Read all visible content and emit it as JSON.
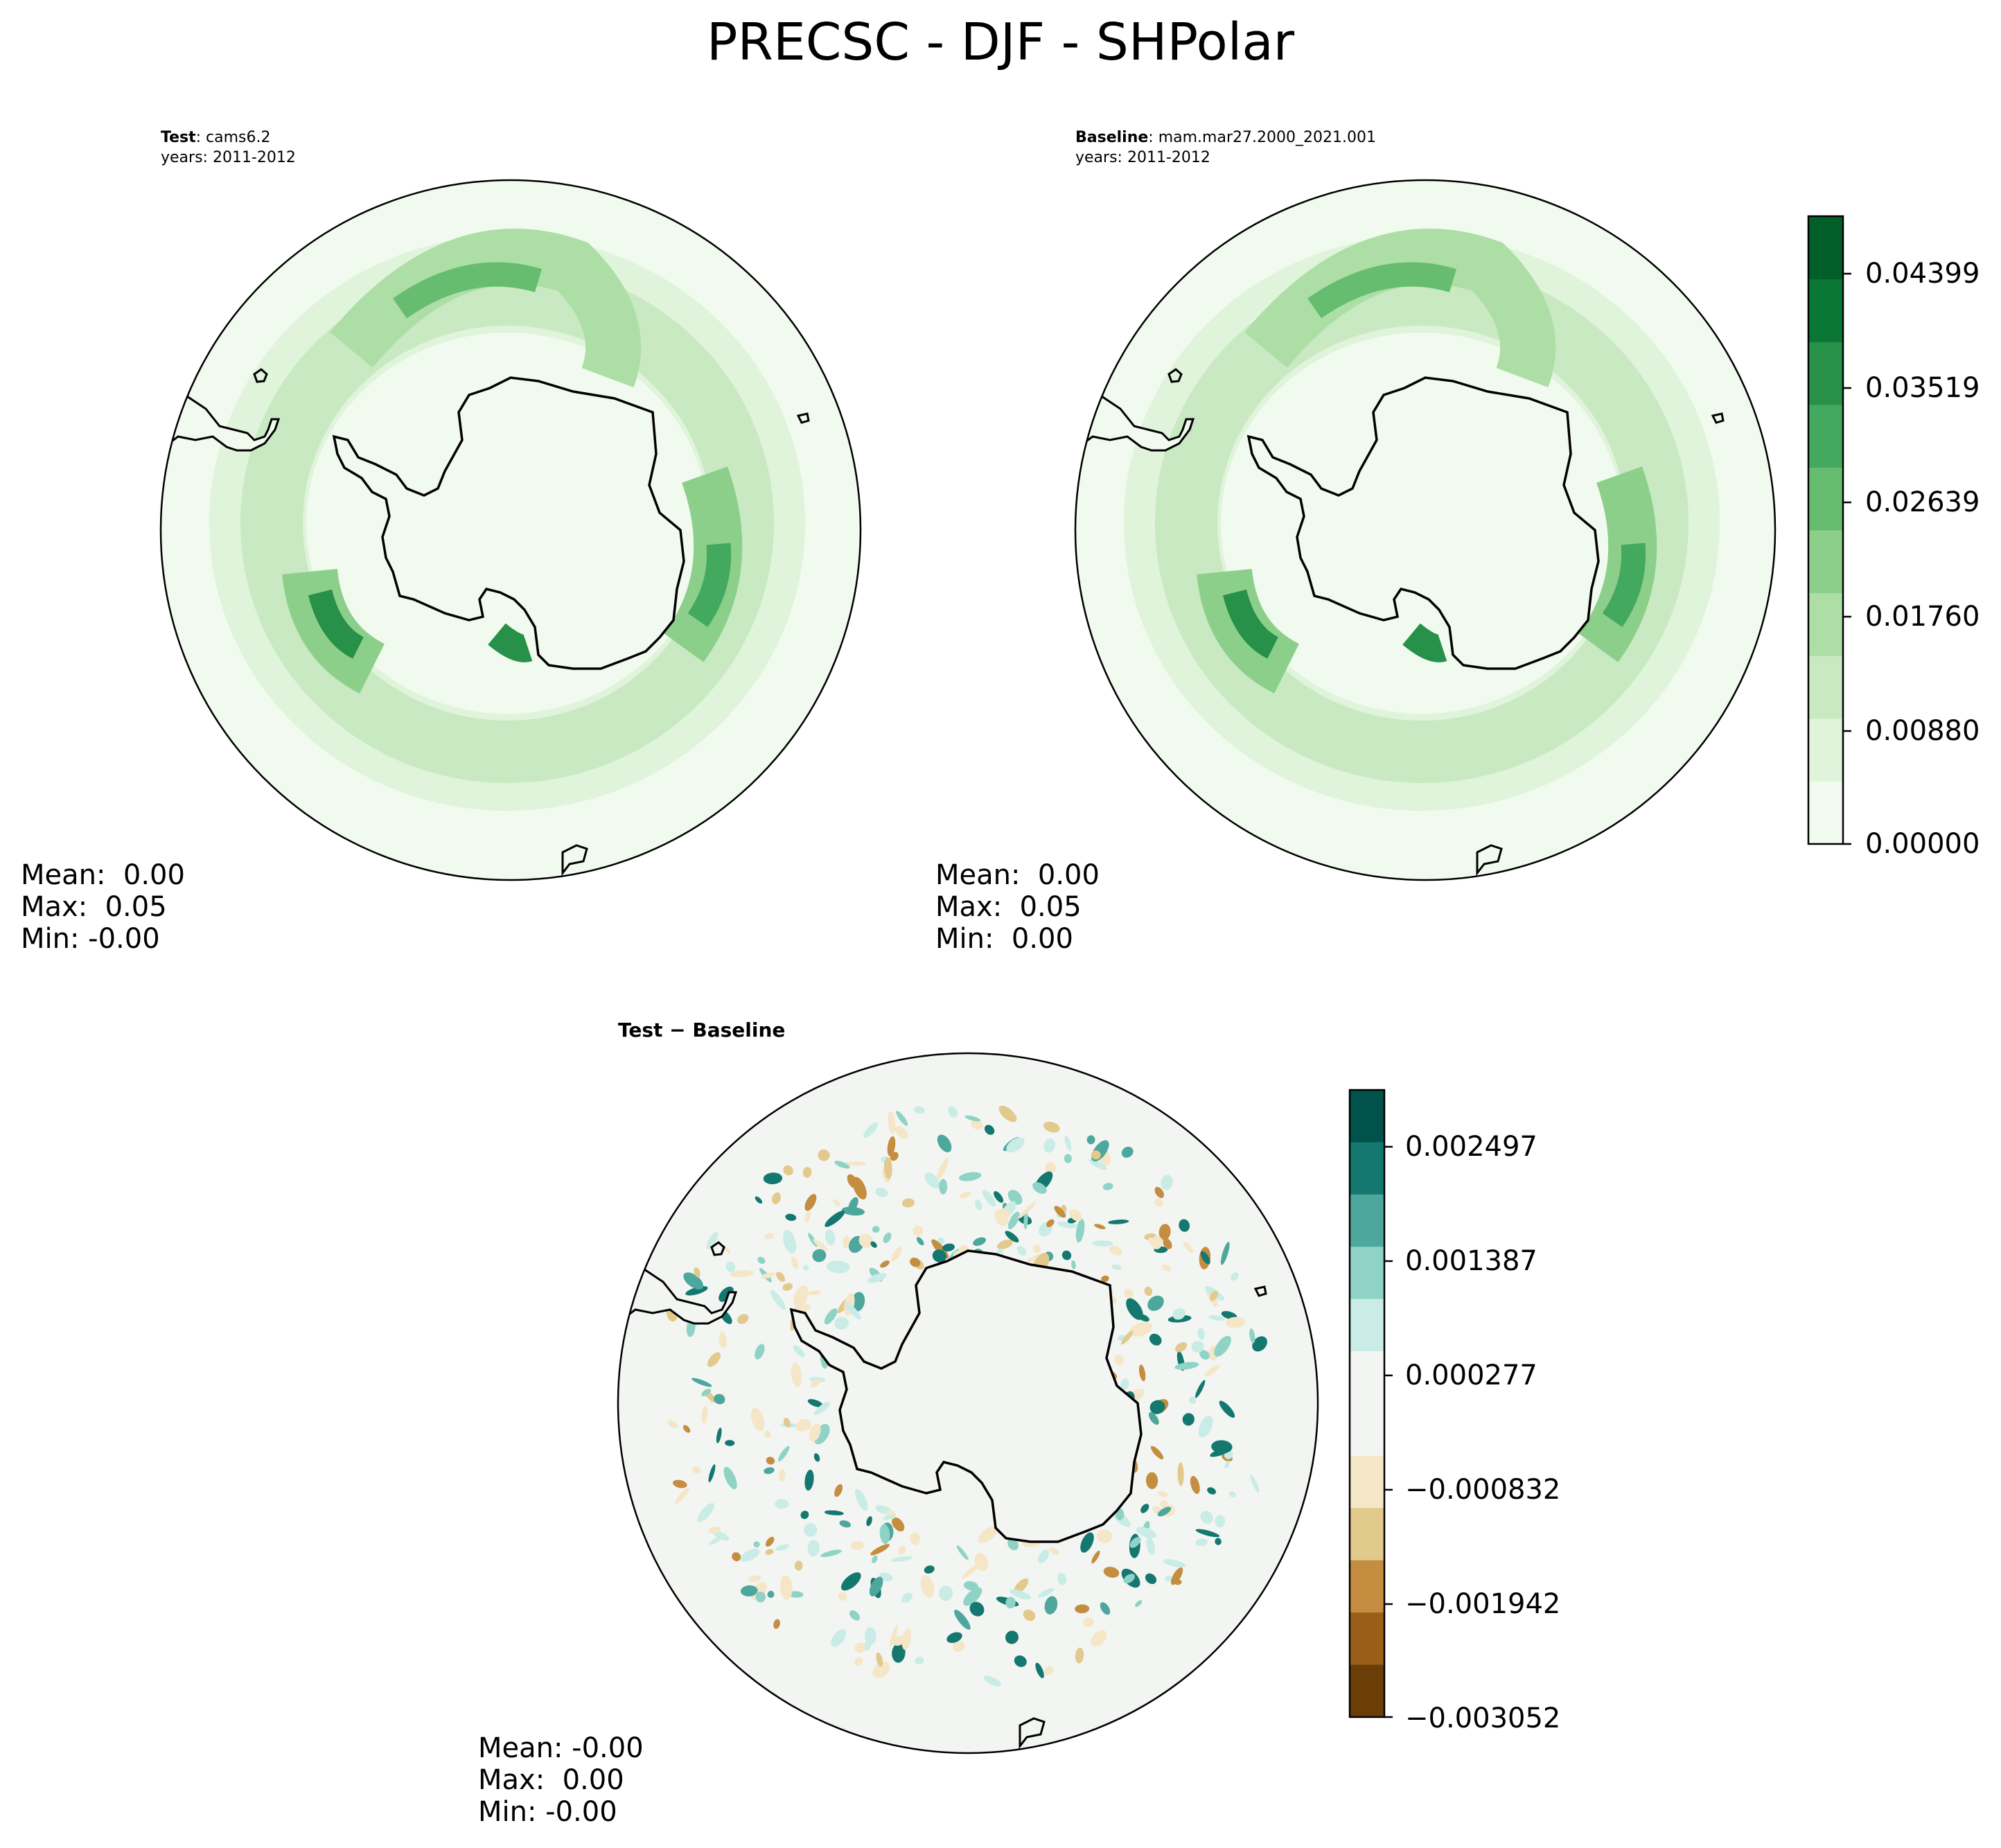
{
  "figure": {
    "title": "PRECSC - DJF - SHPolar"
  },
  "panels": [
    {
      "id": "test",
      "label_bold": "Test",
      "label_rest": ": cams6.2",
      "years": "years: 2011-2012",
      "stats": {
        "mean": "Mean:  0.00",
        "max": "Max:  0.05",
        "min": "Min: -0.00"
      }
    },
    {
      "id": "baseline",
      "label_bold": "Baseline",
      "label_rest": ": mam.mar27.2000_2021.001",
      "years": "years: 2011-2012",
      "stats": {
        "mean": "Mean:  0.00",
        "max": "Max:  0.05",
        "min": "Min:  0.00"
      }
    },
    {
      "id": "diff",
      "title": "Test − Baseline",
      "stats": {
        "mean": "Mean: -0.00",
        "max": "Max:  0.00",
        "min": "Min: -0.00"
      }
    }
  ],
  "colorbars": [
    {
      "id": "greens",
      "colors": [
        "#f1faee",
        "#e0f3db",
        "#c8e9c1",
        "#addea6",
        "#8ccf8a",
        "#67bd6f",
        "#43a95e",
        "#279049",
        "#0b7734",
        "#006028"
      ],
      "ticks": [
        "0.04399",
        "0.03519",
        "0.02639",
        "0.01760",
        "0.00880",
        "0.00000"
      ]
    },
    {
      "id": "brbg",
      "colors": [
        "#f3f5f2",
        "#c9ece6",
        "#8fd3c6",
        "#4da79c",
        "#147870",
        "#00524a",
        "#f5e6c8",
        "#e2c98c",
        "#c48d40",
        "#9a5e18",
        "#6b3e08"
      ],
      "ticks": [
        "0.002497",
        "0.001387",
        "0.000277",
        "−0.000832",
        "−0.001942",
        "−0.003052"
      ]
    }
  ],
  "chart_data": [
    {
      "type": "heatmap",
      "title": "Test: cams6.2, years: 2011-2012",
      "projection": "south polar stereographic",
      "variable": "PRECSC",
      "season": "DJF",
      "region": "SHPolar",
      "colormap": "Greens",
      "levels": [
        0.0,
        0.0044,
        0.0088,
        0.0132,
        0.0176,
        0.022,
        0.0264,
        0.0308,
        0.0352,
        0.0396,
        0.044
      ],
      "pattern": "ring of higher values over Southern Ocean around Antarctica; maxima near Amundsen/Bellingshausen seas and Indian Ocean sector",
      "stats": {
        "mean": 0.0,
        "max": 0.05,
        "min": -0.0
      }
    },
    {
      "type": "heatmap",
      "title": "Baseline: mam.mar27.2000_2021.001, years: 2011-2012",
      "projection": "south polar stereographic",
      "variable": "PRECSC",
      "season": "DJF",
      "region": "SHPolar",
      "colormap": "Greens",
      "levels": [
        0.0,
        0.0044,
        0.0088,
        0.0132,
        0.0176,
        0.022,
        0.0264,
        0.0308,
        0.0352,
        0.0396,
        0.044
      ],
      "stats": {
        "mean": 0.0,
        "max": 0.05,
        "min": 0.0
      }
    },
    {
      "type": "heatmap",
      "title": "Test − Baseline",
      "projection": "south polar stereographic",
      "colormap": "BrBG",
      "levels": [
        -0.003052,
        -0.002497,
        -0.001942,
        -0.001387,
        -0.000832,
        -0.000277,
        0.000277,
        0.000832,
        0.001387,
        0.001942,
        0.002497,
        0.003052
      ],
      "pattern": "small-scale noisy positive/negative differences in a ring over the Southern Ocean",
      "stats": {
        "mean": -0.0,
        "max": 0.0,
        "min": -0.0
      }
    }
  ]
}
